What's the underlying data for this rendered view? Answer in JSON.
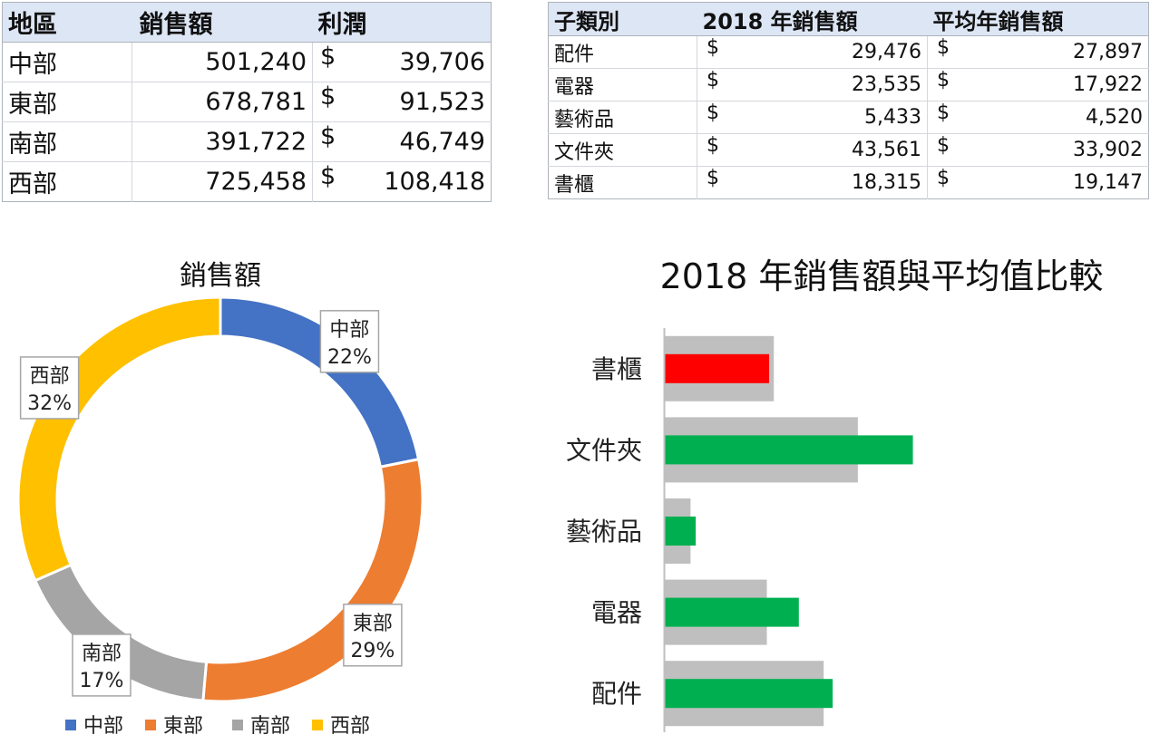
{
  "region_table": {
    "headers": [
      "地區",
      "銷售額",
      "利潤"
    ],
    "rows": [
      {
        "region": "中部",
        "sales": "501,240",
        "currency": "$",
        "profit": "39,706"
      },
      {
        "region": "東部",
        "sales": "678,781",
        "currency": "$",
        "profit": "91,523"
      },
      {
        "region": "南部",
        "sales": "391,722",
        "currency": "$",
        "profit": "46,749"
      },
      {
        "region": "西部",
        "sales": "725,458",
        "currency": "$",
        "profit": "108,418"
      }
    ]
  },
  "subcategory_table": {
    "headers": [
      "子類別",
      "2018 年銷售額",
      "平均年銷售額"
    ],
    "rows": [
      {
        "name": "配件",
        "cur1": "$",
        "sales_2018": "29,476",
        "cur2": "$",
        "avg": "27,897"
      },
      {
        "name": "電器",
        "cur1": "$",
        "sales_2018": "23,535",
        "cur2": "$",
        "avg": "17,922"
      },
      {
        "name": "藝術品",
        "cur1": "$",
        "sales_2018": "5,433",
        "cur2": "$",
        "avg": "4,520"
      },
      {
        "name": "文件夾",
        "cur1": "$",
        "sales_2018": "43,561",
        "cur2": "$",
        "avg": "33,902"
      },
      {
        "name": "書櫃",
        "cur1": "$",
        "sales_2018": "18,315",
        "cur2": "$",
        "avg": "19,147"
      }
    ]
  },
  "chart_data": [
    {
      "type": "pie",
      "variant": "doughnut",
      "title": "銷售額",
      "slices": [
        {
          "label": "中部",
          "value": 501240,
          "pct_label": "22%",
          "color": "#4472C4"
        },
        {
          "label": "東部",
          "value": 678781,
          "pct_label": "29%",
          "color": "#ED7D31"
        },
        {
          "label": "南部",
          "value": 391722,
          "pct_label": "17%",
          "color": "#A5A5A5"
        },
        {
          "label": "西部",
          "value": 725458,
          "pct_label": "32%",
          "color": "#FFC000"
        }
      ],
      "legend_position": "bottom"
    },
    {
      "type": "bar",
      "orientation": "horizontal",
      "title": "2018 年銷售額與平均值比較",
      "categories": [
        "書櫃",
        "文件夾",
        "藝術品",
        "電器",
        "配件"
      ],
      "series": [
        {
          "values": [
            19147,
            33902,
            4520,
            17922,
            27897
          ],
          "color": "#BFBFBF"
        },
        {
          "values": [
            18315,
            43561,
            5433,
            23535,
            29476
          ],
          "colors": [
            "#FF0000",
            "#00B050",
            "#00B050",
            "#00B050",
            "#00B050"
          ]
        }
      ],
      "grid": false
    }
  ]
}
